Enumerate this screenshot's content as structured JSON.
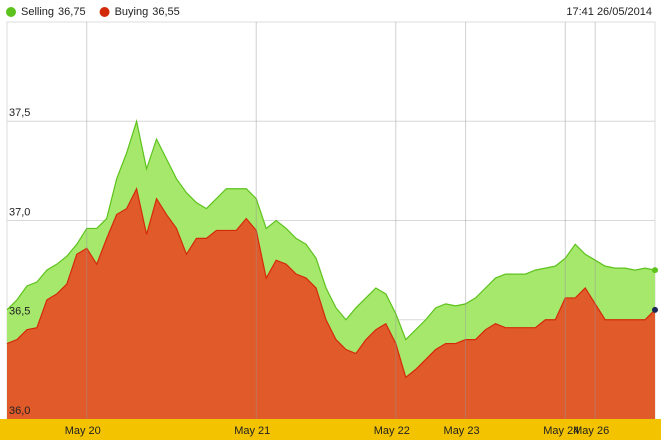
{
  "chart_data": {
    "type": "area",
    "timestamp": "17:41 26/05/2014",
    "categories": [
      null,
      null,
      null,
      null,
      null,
      null,
      null,
      null,
      "May 20",
      null,
      null,
      null,
      null,
      null,
      null,
      null,
      null,
      null,
      null,
      null,
      null,
      null,
      null,
      null,
      null,
      "May 21",
      null,
      null,
      null,
      null,
      null,
      null,
      null,
      null,
      null,
      null,
      null,
      null,
      null,
      "May 22",
      null,
      null,
      null,
      null,
      null,
      null,
      "May 23",
      null,
      null,
      null,
      null,
      null,
      null,
      null,
      null,
      null,
      "May 24",
      null,
      null,
      "May 26",
      null,
      null,
      null,
      null,
      null,
      null
    ],
    "series": [
      {
        "name": "Selling",
        "current_label": "36,75",
        "color": "#5cc21c",
        "fill": "#a6e86c",
        "values": [
          36.55,
          36.6,
          36.67,
          36.69,
          36.75,
          36.78,
          36.82,
          36.88,
          36.96,
          36.96,
          37.01,
          37.21,
          37.34,
          37.5,
          37.26,
          37.41,
          37.31,
          37.21,
          37.14,
          37.09,
          37.06,
          37.11,
          37.16,
          37.16,
          37.16,
          37.11,
          36.96,
          37.0,
          36.96,
          36.91,
          36.88,
          36.81,
          36.66,
          36.56,
          36.5,
          36.56,
          36.61,
          36.66,
          36.63,
          36.53,
          36.4,
          36.45,
          36.5,
          36.56,
          36.58,
          36.57,
          36.58,
          36.61,
          36.66,
          36.71,
          36.73,
          36.73,
          36.73,
          36.75,
          36.76,
          36.77,
          36.81,
          36.88,
          36.83,
          36.8,
          36.77,
          36.76,
          36.76,
          36.75,
          36.76,
          36.75
        ]
      },
      {
        "name": "Buying",
        "current_label": "36,55",
        "color": "#d42a0c",
        "fill": "#e05a2a",
        "values": [
          36.38,
          36.4,
          36.45,
          36.46,
          36.6,
          36.63,
          36.68,
          36.83,
          36.86,
          36.78,
          36.91,
          37.03,
          37.06,
          37.16,
          36.93,
          37.11,
          37.03,
          36.96,
          36.83,
          36.91,
          36.91,
          36.95,
          36.95,
          36.95,
          37.01,
          36.95,
          36.71,
          36.8,
          36.78,
          36.73,
          36.71,
          36.66,
          36.5,
          36.4,
          36.35,
          36.33,
          36.4,
          36.45,
          36.48,
          36.38,
          36.21,
          36.25,
          36.3,
          36.35,
          36.38,
          36.38,
          36.4,
          36.4,
          36.45,
          36.48,
          36.46,
          36.46,
          36.46,
          36.46,
          36.5,
          36.5,
          36.61,
          36.61,
          36.66,
          36.58,
          36.5,
          36.5,
          36.5,
          36.5,
          36.5,
          36.55
        ]
      }
    ],
    "ylim": [
      36.0,
      38.0
    ],
    "yticks": [
      {
        "value": 36.0,
        "label": "36,0"
      },
      {
        "value": 36.5,
        "label": "36,5"
      },
      {
        "value": 37.0,
        "label": "37,0"
      },
      {
        "value": 37.5,
        "label": "37,5"
      }
    ],
    "grid": true
  }
}
